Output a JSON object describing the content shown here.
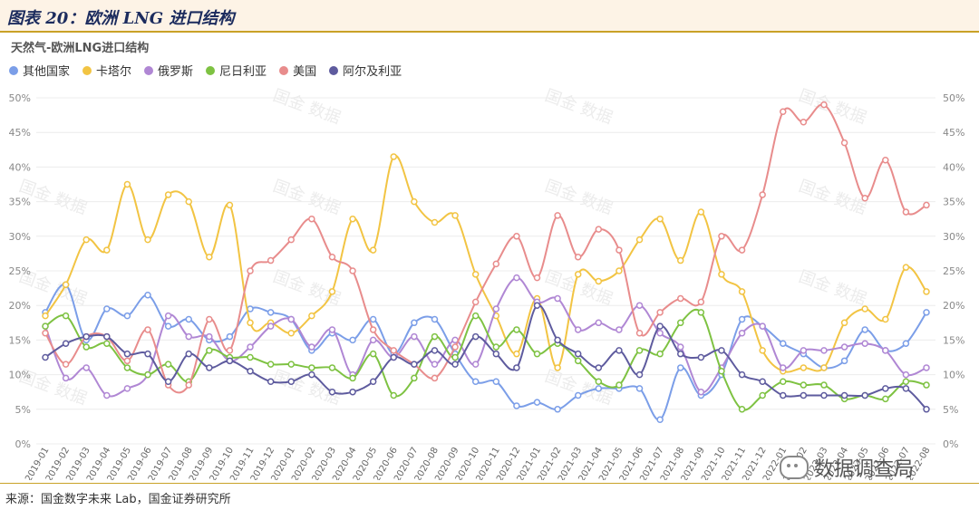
{
  "header": {
    "title": "图表 20：欧洲 LNG 进口结构"
  },
  "footer": {
    "source": "来源：国金数字未来 Lab，国金证券研究所"
  },
  "watermark": {
    "badge_text": "数据调查局",
    "badge_icon": "wechat-icon",
    "text": "国金 数据"
  },
  "chart_data": {
    "type": "line",
    "title": "天然气-欧洲LNG进口结构",
    "x": [
      "2019-01",
      "2019-02",
      "2019-03",
      "2019-04",
      "2019-05",
      "2019-06",
      "2019-07",
      "2019-08",
      "2019-09",
      "2019-10",
      "2019-11",
      "2019-12",
      "2020-01",
      "2020-02",
      "2020-03",
      "2020-04",
      "2020-05",
      "2020-06",
      "2020-07",
      "2020-08",
      "2020-09",
      "2020-10",
      "2020-11",
      "2020-12",
      "2021-01",
      "2021-02",
      "2021-03",
      "2021-04",
      "2021-05",
      "2021-06",
      "2021-07",
      "2021-08",
      "2021-09",
      "2021-10",
      "2021-11",
      "2021-12",
      "2022-01",
      "2022-02",
      "2022-03",
      "2022-04",
      "2022-05",
      "2022-06",
      "2022-07",
      "2022-08"
    ],
    "yticks": [
      "0%",
      "5%",
      "10%",
      "15%",
      "20%",
      "25%",
      "30%",
      "35%",
      "40%",
      "45%",
      "50%"
    ],
    "ylim": [
      0,
      50
    ],
    "legend_position": "top-left",
    "grid": true,
    "series": [
      {
        "name": "其他国家",
        "color": "#7b9ee8",
        "values": [
          19,
          23,
          15,
          19.5,
          18.5,
          21.5,
          17,
          18,
          15,
          15.5,
          19.5,
          19,
          18,
          13.5,
          16,
          15,
          18,
          13,
          17.5,
          18,
          13,
          9,
          9,
          5.5,
          6,
          5,
          7,
          8,
          8,
          8,
          3.5,
          11,
          7,
          10,
          18,
          17,
          14.5,
          13,
          11,
          12,
          16.5,
          13.5,
          14.5,
          19
        ]
      },
      {
        "name": "卡塔尔",
        "color": "#f2c443",
        "values": [
          18.5,
          23,
          29.5,
          28,
          37.5,
          29.5,
          36,
          35,
          27,
          34.5,
          17.5,
          17.5,
          16,
          18.5,
          22,
          32.5,
          28,
          41.5,
          35,
          32,
          33,
          24.5,
          18.5,
          13,
          21,
          11,
          24.5,
          23.5,
          25,
          29.5,
          32.5,
          26.5,
          33.5,
          24.5,
          22,
          13.5,
          10.5,
          11,
          11,
          17.5,
          19.5,
          18,
          25.5,
          22
        ]
      },
      {
        "name": "俄罗斯",
        "color": "#b087d4",
        "values": [
          17,
          9.5,
          11,
          7,
          8,
          10,
          18.5,
          15.5,
          15.5,
          12,
          14,
          17,
          18,
          14,
          16.5,
          10,
          15,
          12.5,
          15.5,
          11.5,
          15,
          11.5,
          19.5,
          24,
          20.5,
          21,
          16.5,
          17.5,
          16.5,
          20,
          16,
          14,
          7.5,
          11,
          16,
          17,
          11,
          13.5,
          13.5,
          14,
          14.5,
          13.5,
          10,
          11
        ]
      },
      {
        "name": "尼日利亚",
        "color": "#7ec242",
        "values": [
          17,
          18.5,
          14,
          14.5,
          11,
          10,
          11.5,
          9,
          13.5,
          12.5,
          12.5,
          11.5,
          11.5,
          11,
          11,
          9.5,
          13,
          7,
          9.5,
          15.5,
          12.5,
          18.5,
          14,
          16.5,
          13,
          14.5,
          12,
          9,
          8.5,
          13.5,
          13,
          17.5,
          19,
          10.5,
          5,
          7,
          9,
          8.5,
          8.5,
          6.5,
          7,
          6.5,
          9,
          8.5
        ]
      },
      {
        "name": "美国",
        "color": "#e88c8c",
        "values": [
          16,
          11.5,
          15.5,
          15.5,
          12,
          16.5,
          8.5,
          8.5,
          18,
          13.5,
          25,
          26.5,
          29.5,
          32.5,
          27,
          25,
          16.5,
          13.5,
          11.5,
          9.5,
          14,
          20.5,
          26,
          30,
          24,
          33,
          27,
          31,
          28,
          16,
          19,
          21,
          20.5,
          30,
          28,
          36,
          48,
          46.5,
          49,
          43.5,
          35.5,
          41,
          33.5,
          34.5
        ]
      },
      {
        "name": "阿尔及利亚",
        "color": "#5e5b9e",
        "values": [
          12.5,
          14.5,
          15.5,
          15.5,
          13,
          13,
          9,
          13,
          11,
          12,
          10.5,
          9,
          9,
          10,
          7.5,
          7.5,
          9,
          12.5,
          11.5,
          13.5,
          11.5,
          15.5,
          13,
          11,
          20,
          15,
          13,
          11,
          13.5,
          10,
          17,
          13,
          12.5,
          13.5,
          10,
          9,
          7,
          7,
          7,
          7,
          7,
          8,
          8,
          5
        ]
      }
    ]
  }
}
